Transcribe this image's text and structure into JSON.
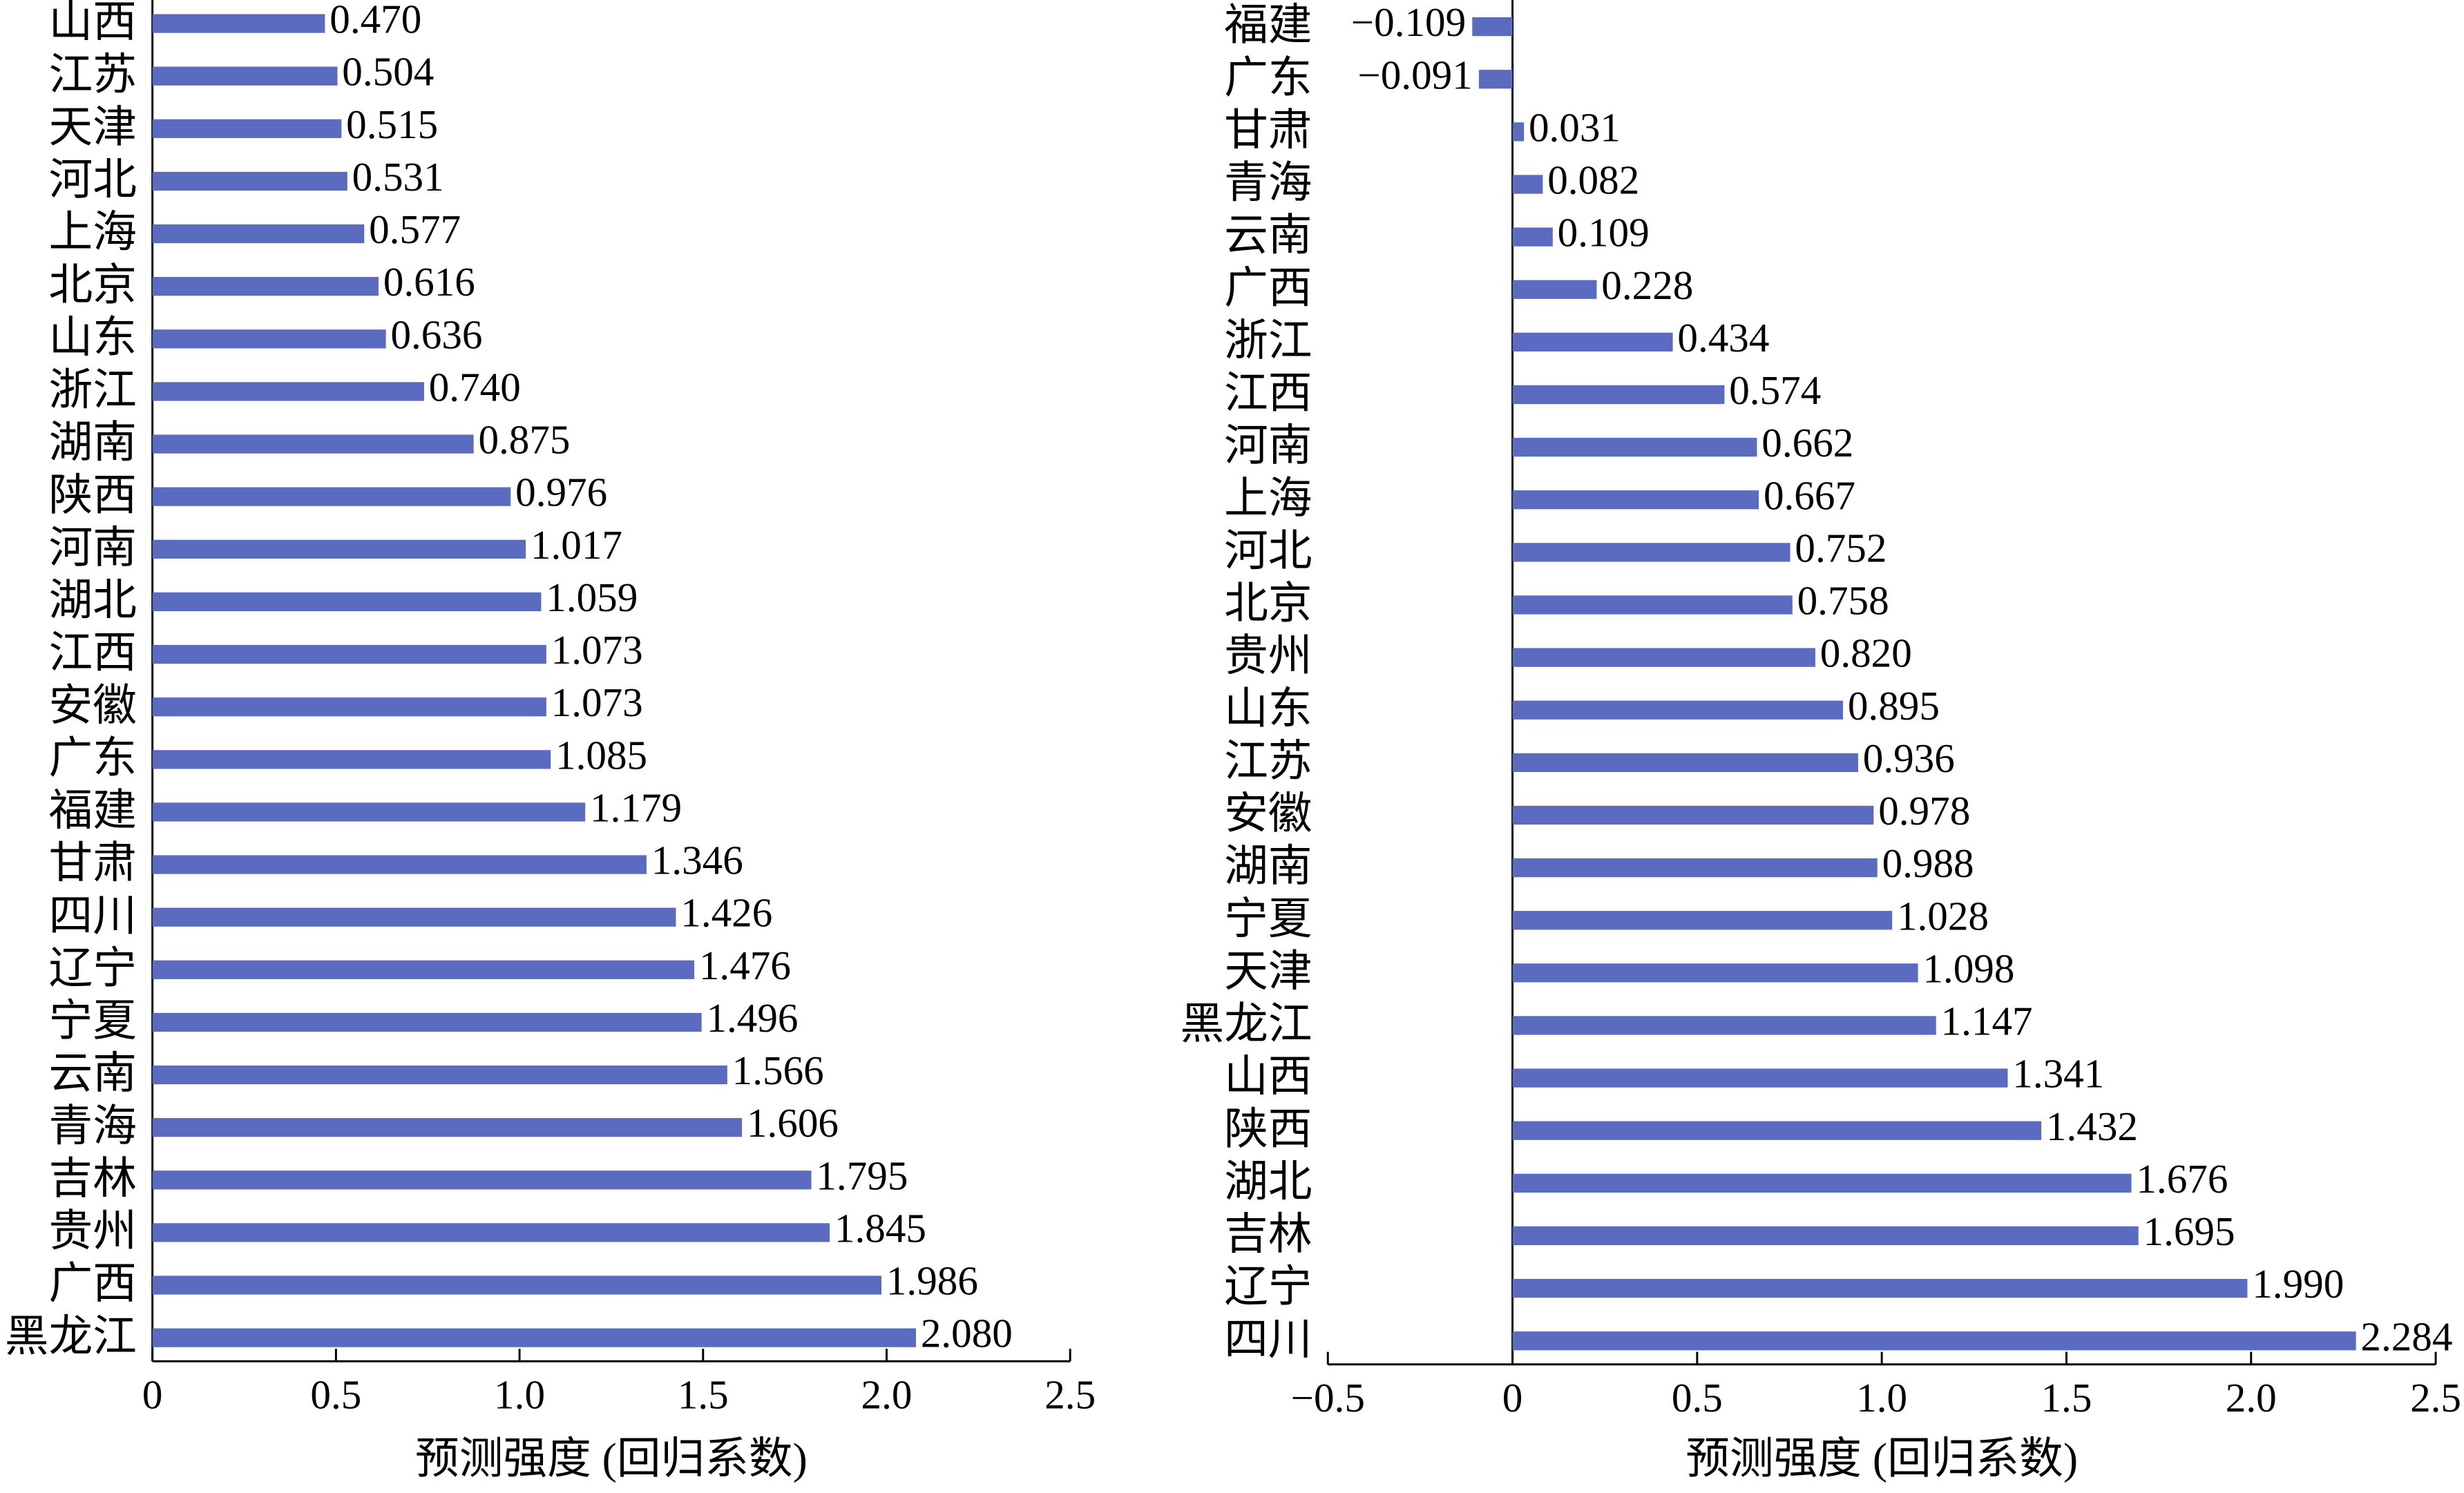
{
  "chart_data": [
    {
      "type": "bar",
      "orientation": "horizontal",
      "color": "#5b6bbf",
      "categories": [
        "山西",
        "江苏",
        "天津",
        "河北",
        "上海",
        "北京",
        "山东",
        "浙江",
        "湖南",
        "陕西",
        "河南",
        "湖北",
        "江西",
        "安徽",
        "广东",
        "福建",
        "甘肃",
        "四川",
        "辽宁",
        "宁夏",
        "云南",
        "青海",
        "吉林",
        "贵州",
        "广西",
        "黑龙江"
      ],
      "values": [
        0.47,
        0.504,
        0.515,
        0.531,
        0.577,
        0.616,
        0.636,
        0.74,
        0.875,
        0.976,
        1.017,
        1.059,
        1.073,
        1.073,
        1.085,
        1.179,
        1.346,
        1.426,
        1.476,
        1.496,
        1.566,
        1.606,
        1.795,
        1.845,
        1.986,
        2.08
      ],
      "value_labels": [
        "0.470",
        "0.504",
        "0.515",
        "0.531",
        "0.577",
        "0.616",
        "0.636",
        "0.740",
        "0.875",
        "0.976",
        "1.017",
        "1.059",
        "1.073",
        "1.073",
        "1.085",
        "1.179",
        "1.346",
        "1.426",
        "1.476",
        "1.496",
        "1.566",
        "1.606",
        "1.795",
        "1.845",
        "1.986",
        "2.080"
      ],
      "xlabel": "预测强度 (回归系数)",
      "xlim": [
        0,
        2.5
      ],
      "xticks": [
        0,
        0.5,
        {
          "value": 1,
          "label": "1.0"
        },
        1.5,
        {
          "value": 2,
          "label": "2.0"
        },
        2.5
      ]
    },
    {
      "type": "bar",
      "orientation": "horizontal",
      "color": "#5b6bbf",
      "categories": [
        "福建",
        "广东",
        "甘肃",
        "青海",
        "云南",
        "广西",
        "浙江",
        "江西",
        "河南",
        "上海",
        "河北",
        "北京",
        "贵州",
        "山东",
        "江苏",
        "安徽",
        "湖南",
        "宁夏",
        "天津",
        "黑龙江",
        "山西",
        "陕西",
        "湖北",
        "吉林",
        "辽宁",
        "四川"
      ],
      "values": [
        -0.109,
        -0.091,
        0.031,
        0.082,
        0.109,
        0.228,
        0.434,
        0.574,
        0.662,
        0.667,
        0.752,
        0.758,
        0.82,
        0.895,
        0.936,
        0.978,
        0.988,
        1.028,
        1.098,
        1.147,
        1.341,
        1.432,
        1.676,
        1.695,
        1.99,
        2.284
      ],
      "value_labels": [
        "−0.109",
        "−0.091",
        "0.031",
        "0.082",
        "0.109",
        "0.228",
        "0.434",
        "0.574",
        "0.662",
        "0.667",
        "0.752",
        "0.758",
        "0.820",
        "0.895",
        "0.936",
        "0.978",
        "0.988",
        "1.028",
        "1.098",
        "1.147",
        "1.341",
        "1.432",
        "1.676",
        "1.695",
        "1.990",
        "2.284"
      ],
      "xlabel": "预测强度 (回归系数)",
      "xlim": [
        -0.5,
        2.5
      ],
      "xticks": [
        {
          "value": -0.5,
          "label": "−0.5"
        },
        0,
        0.5,
        {
          "value": 1,
          "label": "1.0"
        },
        1.5,
        {
          "value": 2,
          "label": "2.0"
        },
        2.5
      ]
    }
  ]
}
